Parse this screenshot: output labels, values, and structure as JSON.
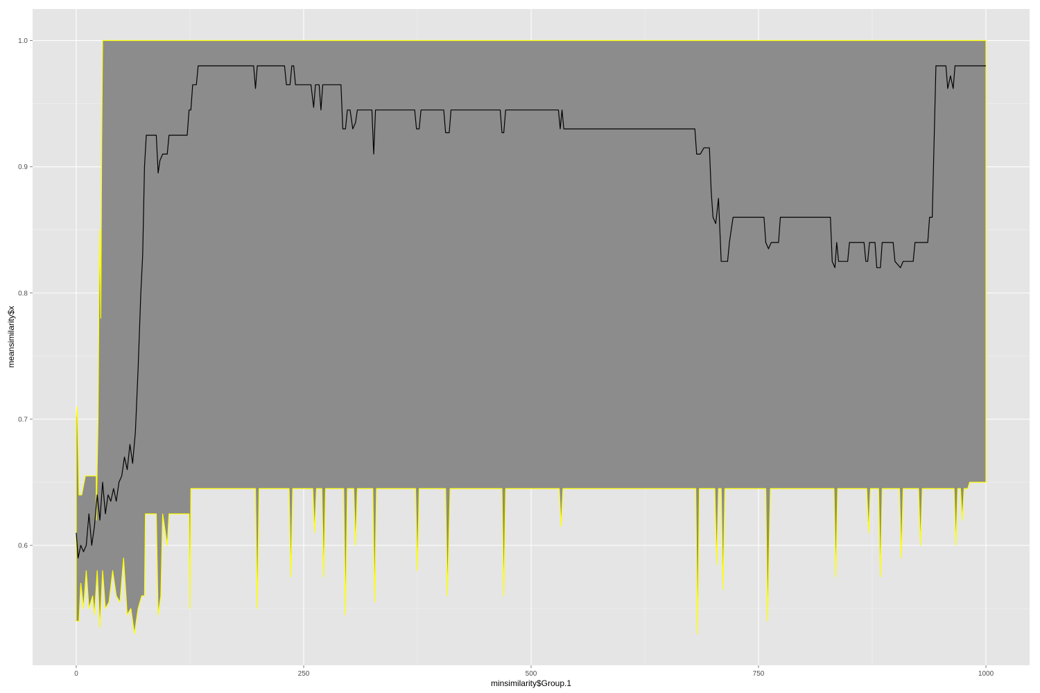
{
  "chart_data": {
    "type": "area",
    "title": "",
    "xlabel": "minsimilarity$Group.1",
    "ylabel": "meansimilarity$x",
    "xlim": [
      -48,
      1048
    ],
    "ylim": [
      0.505,
      1.025
    ],
    "grid": true,
    "legend": "none",
    "x_ticks": [
      0,
      250,
      500,
      750,
      1000
    ],
    "x_tick_labels": [
      "0",
      "250",
      "500",
      "750",
      "1000"
    ],
    "y_ticks": [
      0.6,
      0.7,
      0.8,
      0.9,
      1.0
    ],
    "y_tick_labels": [
      "0.6",
      "0.7",
      "0.8",
      "0.9",
      "1.0"
    ],
    "colors": {
      "panel": "#e5e5e5",
      "grid_major": "#ffffff",
      "grid_minor": "#f2f2f2",
      "ribbon_fill": "#8c8c8c",
      "ribbon_outline": "#ffff00",
      "line": "#000000",
      "tick_label": "#4d4d4d"
    },
    "series": [
      {
        "type": "ribbon",
        "upper": [
          [
            0,
            0.7
          ],
          [
            1,
            0.71
          ],
          [
            2,
            0.68
          ],
          [
            3,
            0.64
          ],
          [
            6,
            0.64
          ],
          [
            10,
            0.655
          ],
          [
            22,
            0.655
          ],
          [
            22,
            0.62
          ],
          [
            24,
            0.7
          ],
          [
            25,
            0.8
          ],
          [
            26,
            0.85
          ],
          [
            27,
            0.78
          ],
          [
            28,
            0.92
          ],
          [
            29,
            1.0
          ],
          [
            1000,
            1.0
          ]
        ],
        "lower": [
          [
            0,
            0.54
          ],
          [
            3,
            0.54
          ],
          [
            5,
            0.57
          ],
          [
            8,
            0.55
          ],
          [
            11,
            0.58
          ],
          [
            14,
            0.55
          ],
          [
            18,
            0.56
          ],
          [
            20,
            0.545
          ],
          [
            23,
            0.58
          ],
          [
            26,
            0.535
          ],
          [
            29,
            0.58
          ],
          [
            32,
            0.55
          ],
          [
            36,
            0.555
          ],
          [
            40,
            0.58
          ],
          [
            44,
            0.56
          ],
          [
            48,
            0.555
          ],
          [
            52,
            0.59
          ],
          [
            56,
            0.545
          ],
          [
            60,
            0.55
          ],
          [
            64,
            0.53
          ],
          [
            68,
            0.55
          ],
          [
            72,
            0.56
          ],
          [
            75,
            0.56
          ],
          [
            76,
            0.625
          ],
          [
            88,
            0.625
          ],
          [
            90,
            0.545
          ],
          [
            93,
            0.56
          ],
          [
            95,
            0.625
          ],
          [
            100,
            0.6
          ],
          [
            102,
            0.625
          ],
          [
            124,
            0.625
          ],
          [
            125,
            0.55
          ],
          [
            126,
            0.645
          ],
          [
            197,
            0.645
          ],
          [
            199,
            0.55
          ],
          [
            201,
            0.645
          ],
          [
            234,
            0.645
          ],
          [
            236,
            0.575
          ],
          [
            238,
            0.645
          ],
          [
            260,
            0.645
          ],
          [
            262,
            0.61
          ],
          [
            264,
            0.645
          ],
          [
            270,
            0.645
          ],
          [
            272,
            0.575
          ],
          [
            274,
            0.645
          ],
          [
            294,
            0.645
          ],
          [
            296,
            0.545
          ],
          [
            298,
            0.645
          ],
          [
            305,
            0.645
          ],
          [
            307,
            0.6
          ],
          [
            309,
            0.645
          ],
          [
            326,
            0.645
          ],
          [
            328,
            0.555
          ],
          [
            330,
            0.645
          ],
          [
            373,
            0.645
          ],
          [
            375,
            0.58
          ],
          [
            377,
            0.645
          ],
          [
            406,
            0.645
          ],
          [
            408,
            0.56
          ],
          [
            411,
            0.645
          ],
          [
            468,
            0.645
          ],
          [
            470,
            0.56
          ],
          [
            472,
            0.645
          ],
          [
            531,
            0.645
          ],
          [
            533,
            0.615
          ],
          [
            535,
            0.645
          ],
          [
            681,
            0.645
          ],
          [
            683,
            0.53
          ],
          [
            685,
            0.645
          ],
          [
            702,
            0.645
          ],
          [
            704,
            0.585
          ],
          [
            706,
            0.645
          ],
          [
            709,
            0.645
          ],
          [
            711,
            0.565
          ],
          [
            713,
            0.645
          ],
          [
            758,
            0.645
          ],
          [
            760,
            0.54
          ],
          [
            763,
            0.645
          ],
          [
            833,
            0.645
          ],
          [
            835,
            0.575
          ],
          [
            837,
            0.645
          ],
          [
            869,
            0.645
          ],
          [
            871,
            0.61
          ],
          [
            873,
            0.645
          ],
          [
            882,
            0.645
          ],
          [
            884,
            0.575
          ],
          [
            886,
            0.645
          ],
          [
            905,
            0.645
          ],
          [
            907,
            0.59
          ],
          [
            909,
            0.645
          ],
          [
            926,
            0.645
          ],
          [
            928,
            0.6
          ],
          [
            930,
            0.645
          ],
          [
            965,
            0.645
          ],
          [
            967,
            0.6
          ],
          [
            969,
            0.645
          ],
          [
            972,
            0.645
          ],
          [
            974,
            0.62
          ],
          [
            976,
            0.645
          ],
          [
            980,
            0.645
          ],
          [
            982,
            0.65
          ],
          [
            1000,
            0.65
          ]
        ]
      },
      {
        "type": "line",
        "points": [
          [
            0,
            0.61
          ],
          [
            2,
            0.59
          ],
          [
            5,
            0.6
          ],
          [
            8,
            0.595
          ],
          [
            11,
            0.6
          ],
          [
            14,
            0.625
          ],
          [
            17,
            0.6
          ],
          [
            20,
            0.615
          ],
          [
            23,
            0.64
          ],
          [
            26,
            0.62
          ],
          [
            29,
            0.65
          ],
          [
            32,
            0.625
          ],
          [
            35,
            0.64
          ],
          [
            38,
            0.635
          ],
          [
            41,
            0.645
          ],
          [
            44,
            0.635
          ],
          [
            47,
            0.65
          ],
          [
            50,
            0.655
          ],
          [
            53,
            0.67
          ],
          [
            56,
            0.66
          ],
          [
            59,
            0.68
          ],
          [
            62,
            0.665
          ],
          [
            65,
            0.69
          ],
          [
            68,
            0.74
          ],
          [
            71,
            0.8
          ],
          [
            73,
            0.83
          ],
          [
            75,
            0.9
          ],
          [
            77,
            0.925
          ],
          [
            88,
            0.925
          ],
          [
            90,
            0.895
          ],
          [
            92,
            0.905
          ],
          [
            95,
            0.91
          ],
          [
            100,
            0.91
          ],
          [
            102,
            0.925
          ],
          [
            122,
            0.925
          ],
          [
            124,
            0.945
          ],
          [
            126,
            0.945
          ],
          [
            128,
            0.965
          ],
          [
            132,
            0.965
          ],
          [
            134,
            0.98
          ],
          [
            195,
            0.98
          ],
          [
            197,
            0.962
          ],
          [
            199,
            0.98
          ],
          [
            229,
            0.98
          ],
          [
            231,
            0.965
          ],
          [
            235,
            0.965
          ],
          [
            237,
            0.98
          ],
          [
            239,
            0.98
          ],
          [
            241,
            0.965
          ],
          [
            258,
            0.965
          ],
          [
            261,
            0.947
          ],
          [
            263,
            0.965
          ],
          [
            267,
            0.965
          ],
          [
            269,
            0.945
          ],
          [
            271,
            0.965
          ],
          [
            291,
            0.965
          ],
          [
            293,
            0.93
          ],
          [
            296,
            0.93
          ],
          [
            298,
            0.945
          ],
          [
            301,
            0.945
          ],
          [
            304,
            0.93
          ],
          [
            307,
            0.935
          ],
          [
            309,
            0.945
          ],
          [
            325,
            0.945
          ],
          [
            327,
            0.91
          ],
          [
            329,
            0.945
          ],
          [
            372,
            0.945
          ],
          [
            374,
            0.93
          ],
          [
            377,
            0.93
          ],
          [
            379,
            0.945
          ],
          [
            404,
            0.945
          ],
          [
            406,
            0.927
          ],
          [
            410,
            0.927
          ],
          [
            412,
            0.945
          ],
          [
            466,
            0.945
          ],
          [
            468,
            0.927
          ],
          [
            470,
            0.927
          ],
          [
            472,
            0.945
          ],
          [
            530,
            0.945
          ],
          [
            532,
            0.93
          ],
          [
            534,
            0.945
          ],
          [
            536,
            0.93
          ],
          [
            680,
            0.93
          ],
          [
            682,
            0.91
          ],
          [
            686,
            0.91
          ],
          [
            690,
            0.915
          ],
          [
            696,
            0.915
          ],
          [
            698,
            0.88
          ],
          [
            700,
            0.86
          ],
          [
            703,
            0.855
          ],
          [
            706,
            0.875
          ],
          [
            709,
            0.825
          ],
          [
            716,
            0.825
          ],
          [
            718,
            0.84
          ],
          [
            722,
            0.86
          ],
          [
            756,
            0.86
          ],
          [
            758,
            0.84
          ],
          [
            761,
            0.835
          ],
          [
            764,
            0.84
          ],
          [
            772,
            0.84
          ],
          [
            774,
            0.86
          ],
          [
            829,
            0.86
          ],
          [
            831,
            0.825
          ],
          [
            834,
            0.82
          ],
          [
            836,
            0.84
          ],
          [
            838,
            0.825
          ],
          [
            848,
            0.825
          ],
          [
            850,
            0.84
          ],
          [
            866,
            0.84
          ],
          [
            868,
            0.825
          ],
          [
            870,
            0.825
          ],
          [
            872,
            0.84
          ],
          [
            878,
            0.84
          ],
          [
            880,
            0.82
          ],
          [
            884,
            0.82
          ],
          [
            886,
            0.84
          ],
          [
            898,
            0.84
          ],
          [
            900,
            0.825
          ],
          [
            906,
            0.82
          ],
          [
            909,
            0.825
          ],
          [
            920,
            0.825
          ],
          [
            922,
            0.84
          ],
          [
            936,
            0.84
          ],
          [
            938,
            0.86
          ],
          [
            941,
            0.86
          ],
          [
            945,
            0.98
          ],
          [
            956,
            0.98
          ],
          [
            958,
            0.962
          ],
          [
            961,
            0.972
          ],
          [
            964,
            0.962
          ],
          [
            966,
            0.98
          ],
          [
            1000,
            0.98
          ]
        ]
      }
    ]
  }
}
